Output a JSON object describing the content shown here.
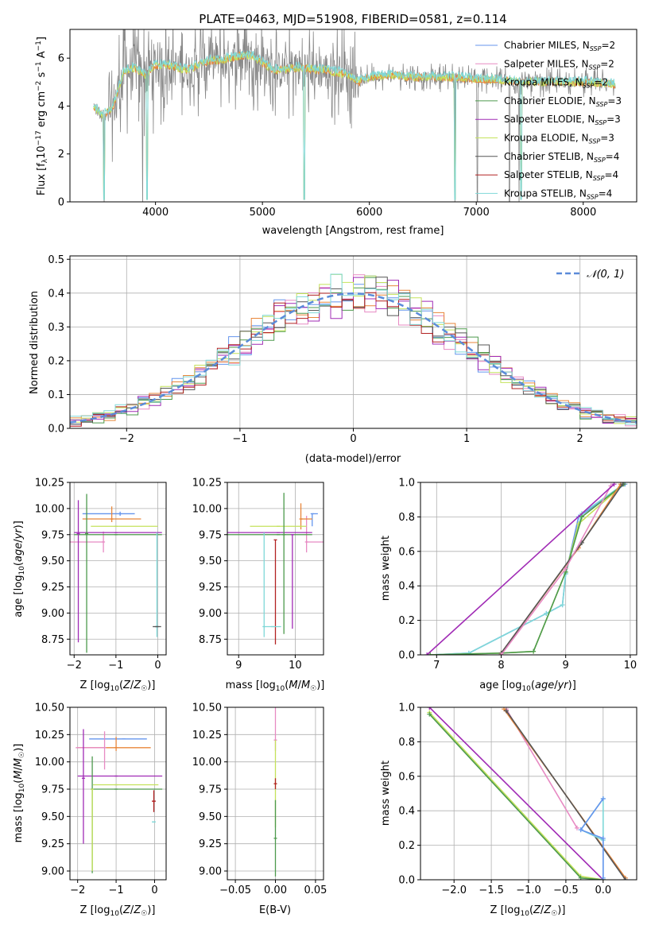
{
  "colors": {
    "c1": "#6495ed",
    "c2": "#e78ac3",
    "c3": "#e8863a",
    "c4": "#4d9a4d",
    "c5": "#a02bb5",
    "c6": "#c4e25b",
    "c7": "#555555",
    "c8": "#b22222",
    "c9": "#7fd8d8",
    "obs": "#888888",
    "grid": "#b0b0b0"
  },
  "chart_data": [
    {
      "id": "spectrum",
      "type": "line",
      "title": "PLATE=0463, MJD=51908, FIBERID=0581, z=0.114",
      "xlabel": "wavelength [Angstrom, rest frame]",
      "ylabel": "Flux [f_λ10⁻¹⁷ erg cm⁻² s⁻¹ A⁻¹]",
      "xlim": [
        3200,
        8500
      ],
      "ylim": [
        0,
        7.2
      ],
      "xticks": [
        4000,
        5000,
        6000,
        7000,
        8000
      ],
      "yticks": [
        0,
        2,
        4,
        6
      ],
      "legend_position": "right",
      "series": [
        {
          "name": "Chabrier MILES, N_SSP=2"
        },
        {
          "name": "Salpeter MILES, N_SSP=2"
        },
        {
          "name": "Kroupa MILES, N_SSP=2"
        },
        {
          "name": "Chabrier ELODIE, N_SSP=3"
        },
        {
          "name": "Salpeter ELODIE, N_SSP=3"
        },
        {
          "name": "Kroupa ELODIE, N_SSP=3"
        },
        {
          "name": "Chabrier STELIB, N_SSP=4"
        },
        {
          "name": "Salpeter STELIB, N_SSP=4"
        },
        {
          "name": "Kroupa STELIB, N_SSP=4"
        }
      ],
      "continuum": [
        [
          3420,
          4.0
        ],
        [
          3500,
          3.6
        ],
        [
          3600,
          3.9
        ],
        [
          3700,
          5.4
        ],
        [
          3800,
          5.6
        ],
        [
          3900,
          5.3
        ],
        [
          4000,
          5.7
        ],
        [
          4100,
          5.7
        ],
        [
          4200,
          5.6
        ],
        [
          4300,
          5.5
        ],
        [
          4400,
          5.7
        ],
        [
          4500,
          5.9
        ],
        [
          4600,
          5.9
        ],
        [
          4700,
          6.0
        ],
        [
          4800,
          6.1
        ],
        [
          4900,
          6.1
        ],
        [
          5000,
          5.8
        ],
        [
          5100,
          5.5
        ],
        [
          5200,
          5.5
        ],
        [
          5300,
          5.6
        ],
        [
          5400,
          5.6
        ],
        [
          5500,
          5.5
        ],
        [
          5600,
          5.5
        ],
        [
          5700,
          5.4
        ],
        [
          5800,
          5.3
        ],
        [
          5900,
          5.0
        ],
        [
          6000,
          5.2
        ],
        [
          6200,
          5.3
        ],
        [
          6400,
          5.2
        ],
        [
          6600,
          5.2
        ],
        [
          6800,
          5.2
        ],
        [
          7000,
          5.1
        ],
        [
          7200,
          5.1
        ],
        [
          7400,
          5.0
        ],
        [
          7600,
          5.0
        ],
        [
          7800,
          5.0
        ],
        [
          8000,
          5.0
        ],
        [
          8300,
          4.9
        ]
      ],
      "model_dips": [
        3520,
        3920,
        5390,
        6800,
        7420
      ],
      "obs_dips": [
        3520,
        3880,
        6800,
        7010,
        7310,
        7400
      ]
    },
    {
      "id": "residuals",
      "type": "step",
      "xlabel": "(data-model)/error",
      "ylabel": "Normed distribution",
      "xlim": [
        -2.5,
        2.5
      ],
      "ylim": [
        0,
        0.51
      ],
      "xticks": [
        -2,
        -1,
        0,
        1,
        2
      ],
      "yticks": [
        0,
        0.1,
        0.2,
        0.3,
        0.4,
        0.5
      ],
      "legend": "𝒩(0, 1)",
      "legend_position": "upper right",
      "bin_width": 0.1
    },
    {
      "id": "age_vs_Z",
      "type": "errorbar",
      "xlabel": "Z [log10(Z/Z☉)]",
      "ylabel": "age  [log10(age/yr)]",
      "xlim": [
        -2.1,
        0.2
      ],
      "ylim": [
        8.6,
        10.25
      ],
      "xticks": [
        -2,
        -1,
        0
      ],
      "yticks": [
        8.75,
        9.0,
        9.25,
        9.5,
        9.75,
        10.0,
        10.25
      ],
      "points": [
        {
          "c": "c1",
          "x": -0.9,
          "y": 9.95,
          "xe": [
            0.9,
            0.35
          ],
          "ye": [
            0.02,
            0.02
          ]
        },
        {
          "c": "c3",
          "x": -1.1,
          "y": 9.9,
          "xe": [
            0.7,
            0.7
          ],
          "ye": [
            0.03,
            0.12
          ]
        },
        {
          "c": "c2",
          "x": -1.3,
          "y": 9.68,
          "xe": [
            0.85,
            0.0
          ],
          "ye": [
            0.1,
            0.1
          ]
        },
        {
          "c": "c5",
          "x": -1.0,
          "y": 9.77,
          "xe": [
            1.0,
            1.1
          ],
          "ye": [
            0.0,
            0.0
          ]
        },
        {
          "c": "c4",
          "x": -1.0,
          "y": 9.75,
          "xe": [
            1.0,
            1.1
          ],
          "ye": [
            0.0,
            0.0
          ]
        },
        {
          "c": "c6",
          "x": -1.0,
          "y": 9.83,
          "xe": [
            0.6,
            1.0
          ],
          "ye": [
            0.0,
            0.0
          ]
        },
        {
          "c": "c5",
          "x": -1.9,
          "y": 9.76,
          "xe": [
            0.0,
            0.0
          ],
          "ye": [
            1.04,
            0.32
          ]
        },
        {
          "c": "c4",
          "x": -1.7,
          "y": 9.76,
          "xe": [
            0.0,
            0.0
          ],
          "ye": [
            1.14,
            0.38
          ]
        },
        {
          "c": "c9",
          "x": -0.02,
          "y": 8.87,
          "xe": [
            0.0,
            0.0
          ],
          "ye": [
            0.1,
            0.9
          ]
        },
        {
          "c": "c7",
          "x": -0.02,
          "y": 8.87,
          "xe": [
            0.1,
            0.1
          ],
          "ye": [
            0.0,
            0.0
          ]
        }
      ]
    },
    {
      "id": "age_vs_mass",
      "type": "errorbar",
      "xlabel": "mass [log10(M/M☉)]",
      "xlim": [
        8.8,
        10.5
      ],
      "ylim": [
        8.6,
        10.25
      ],
      "xticks": [
        9,
        10
      ],
      "yticks": [
        8.75,
        9.0,
        9.25,
        9.5,
        9.75,
        10.0,
        10.25
      ],
      "points": [
        {
          "c": "c1",
          "x": 10.3,
          "y": 9.95,
          "xe": [
            0.0,
            0.1
          ],
          "ye": [
            0.12,
            0.0
          ]
        },
        {
          "c": "c2",
          "x": 10.2,
          "y": 9.68,
          "xe": [
            0.0,
            0.3
          ],
          "ye": [
            0.1,
            0.25
          ]
        },
        {
          "c": "c3",
          "x": 10.1,
          "y": 9.9,
          "xe": [
            0.0,
            0.2
          ],
          "ye": [
            0.1,
            0.15
          ]
        },
        {
          "c": "c6",
          "x": 9.7,
          "y": 9.83,
          "xe": [
            0.5,
            0.5
          ],
          "ye": [
            0.0,
            0.0
          ]
        },
        {
          "c": "c5",
          "x": 9.7,
          "y": 9.77,
          "xe": [
            0.9,
            0.6
          ],
          "ye": [
            0.0,
            0.0
          ]
        },
        {
          "c": "c4",
          "x": 9.7,
          "y": 9.75,
          "xe": [
            0.9,
            0.6
          ],
          "ye": [
            0.0,
            0.0
          ]
        },
        {
          "c": "c8",
          "x": 9.65,
          "y": 9.7,
          "xe": [
            0.0,
            0.0
          ],
          "ye": [
            1.0,
            0.0
          ]
        },
        {
          "c": "c4",
          "x": 9.8,
          "y": 9.75,
          "xe": [
            0.0,
            0.0
          ],
          "ye": [
            0.95,
            0.4
          ]
        },
        {
          "c": "c9",
          "x": 9.45,
          "y": 8.87,
          "xe": [
            0.0,
            0.0
          ],
          "ye": [
            0.1,
            0.9
          ]
        },
        {
          "c": "c9",
          "x": 9.6,
          "y": 8.87,
          "xe": [
            0.15,
            0.15
          ],
          "ye": [
            0.0,
            0.0
          ]
        },
        {
          "c": "c5",
          "x": 9.95,
          "y": 9.75,
          "xe": [
            0.0,
            0.0
          ],
          "ye": [
            0.9,
            0.0
          ]
        }
      ]
    },
    {
      "id": "mw_vs_age",
      "type": "cumulative_line",
      "xlabel": "age  [log10(age/yr)]",
      "ylabel": "mass weight",
      "xlim": [
        6.75,
        10.1
      ],
      "ylim": [
        0,
        1
      ],
      "xticks": [
        7,
        8,
        9,
        10
      ],
      "yticks": [
        0,
        0.2,
        0.4,
        0.6,
        0.8,
        1.0
      ],
      "series": [
        {
          "c": "c1",
          "pts": [
            [
              6.9,
              0
            ],
            [
              7.5,
              0.01
            ],
            [
              8.7,
              0.24
            ],
            [
              8.95,
              0.29
            ],
            [
              9.0,
              0.47
            ],
            [
              9.2,
              0.8
            ],
            [
              9.92,
              0.99
            ]
          ]
        },
        {
          "c": "c9",
          "pts": [
            [
              6.9,
              0
            ],
            [
              7.5,
              0.01
            ],
            [
              8.7,
              0.24
            ],
            [
              8.95,
              0.29
            ],
            [
              9.0,
              0.47
            ],
            [
              9.25,
              0.82
            ],
            [
              9.9,
              0.99
            ]
          ]
        },
        {
          "c": "c6",
          "pts": [
            [
              6.9,
              0
            ],
            [
              8.0,
              0.01
            ],
            [
              8.5,
              0.02
            ],
            [
              9.0,
              0.48
            ],
            [
              9.2,
              0.76
            ],
            [
              9.9,
              0.99
            ]
          ]
        },
        {
          "c": "c4",
          "pts": [
            [
              6.9,
              0
            ],
            [
              8.0,
              0.01
            ],
            [
              8.5,
              0.02
            ],
            [
              9.0,
              0.48
            ],
            [
              9.25,
              0.8
            ],
            [
              9.9,
              0.99
            ]
          ]
        },
        {
          "c": "c3",
          "pts": [
            [
              8.0,
              0
            ],
            [
              8.0,
              0.01
            ],
            [
              9.2,
              0.62
            ],
            [
              9.85,
              0.99
            ]
          ]
        },
        {
          "c": "c7",
          "pts": [
            [
              8.0,
              0
            ],
            [
              8.0,
              0.01
            ],
            [
              9.25,
              0.65
            ],
            [
              9.88,
              0.99
            ]
          ]
        },
        {
          "c": "c2",
          "pts": [
            [
              8.0,
              0
            ],
            [
              9.0,
              0.5
            ],
            [
              9.7,
              0.98
            ]
          ]
        },
        {
          "c": "c5",
          "pts": [
            [
              6.85,
              0
            ],
            [
              9.75,
              0.99
            ]
          ]
        }
      ]
    },
    {
      "id": "mass_vs_Z",
      "type": "errorbar",
      "xlabel": "Z [log10(Z/Z☉)]",
      "ylabel": "mass [log10(M/M☉)]",
      "xlim": [
        -2.2,
        0.3
      ],
      "ylim": [
        8.92,
        10.5
      ],
      "xticks": [
        -2,
        -1,
        0
      ],
      "yticks": [
        9.0,
        9.25,
        9.5,
        9.75,
        10.0,
        10.25,
        10.5
      ],
      "points": [
        {
          "c": "c1",
          "x": -0.8,
          "y": 10.21,
          "xe": [
            0.9,
            0.6
          ],
          "ye": [
            0.0,
            0.0
          ]
        },
        {
          "c": "c3",
          "x": -1.0,
          "y": 10.13,
          "xe": [
            1.0,
            0.9
          ],
          "ye": [
            0.03,
            0.1
          ]
        },
        {
          "c": "c2",
          "x": -1.3,
          "y": 10.13,
          "xe": [
            0.75,
            0.0
          ],
          "ye": [
            0.2,
            0.15
          ]
        },
        {
          "c": "c5",
          "x": -1.0,
          "y": 9.87,
          "xe": [
            1.0,
            1.2
          ],
          "ye": [
            0.0,
            0.0
          ]
        },
        {
          "c": "c6",
          "x": -1.0,
          "y": 9.79,
          "xe": [
            0.6,
            1.1
          ],
          "ye": [
            0.0,
            0.0
          ]
        },
        {
          "c": "c4",
          "x": -1.0,
          "y": 9.75,
          "xe": [
            0.6,
            1.2
          ],
          "ye": [
            0.0,
            0.0
          ]
        },
        {
          "c": "c5",
          "x": -1.85,
          "y": 9.85,
          "xe": [
            0.0,
            0.0
          ],
          "ye": [
            0.6,
            0.45
          ]
        },
        {
          "c": "c4",
          "x": -1.62,
          "y": 9.75,
          "xe": [
            0.0,
            0.0
          ],
          "ye": [
            0.77,
            0.3
          ]
        },
        {
          "c": "c6",
          "x": -1.62,
          "y": 9.75,
          "xe": [
            0.0,
            0.0
          ],
          "ye": [
            0.75,
            0.0
          ]
        },
        {
          "c": "c9",
          "x": -0.02,
          "y": 9.45,
          "xe": [
            0.05,
            0.05
          ],
          "ye": [
            0.0,
            0.0
          ]
        },
        {
          "c": "c8",
          "x": -0.02,
          "y": 9.64,
          "xe": [
            0.05,
            0.05
          ],
          "ye": [
            0.1,
            0.1
          ]
        }
      ]
    },
    {
      "id": "mass_vs_ebv",
      "type": "errorbar",
      "xlabel": "E(B-V)",
      "xlim": [
        -0.06,
        0.06
      ],
      "ylim": [
        8.92,
        10.5
      ],
      "xticks": [
        -0.05,
        0.0,
        0.05
      ],
      "yticks": [
        9.0,
        9.25,
        9.5,
        9.75,
        10.0,
        10.25,
        10.5
      ],
      "points": [
        {
          "c": "c2",
          "x": 0.0,
          "y": 10.2,
          "xe": [
            0,
            0
          ],
          "ye": [
            0.1,
            0.3
          ]
        },
        {
          "c": "c6",
          "x": 0.0,
          "y": 9.8,
          "xe": [
            0,
            0
          ],
          "ye": [
            0.4,
            0.4
          ]
        },
        {
          "c": "c4",
          "x": 0.0,
          "y": 9.3,
          "xe": [
            0,
            0
          ],
          "ye": [
            0.35,
            0.35
          ]
        },
        {
          "c": "c8",
          "x": 0.0,
          "y": 9.8,
          "xe": [
            0,
            0
          ],
          "ye": [
            0.05,
            0.05
          ]
        }
      ]
    },
    {
      "id": "mw_vs_Z",
      "type": "cumulative_line",
      "xlabel": "Z [log10(Z/Z☉)]",
      "ylabel": "mass weight",
      "xlim": [
        -2.45,
        0.45
      ],
      "ylim": [
        0,
        1
      ],
      "xticks": [
        -2.0,
        -1.5,
        -1.0,
        -0.5,
        0.0
      ],
      "yticks": [
        0,
        0.2,
        0.4,
        0.6,
        0.8,
        1.0
      ],
      "series": [
        {
          "c": "c6",
          "pts": [
            [
              -2.33,
              0.97
            ],
            [
              -0.3,
              0.02
            ],
            [
              0.0,
              0.0
            ]
          ]
        },
        {
          "c": "c4",
          "pts": [
            [
              -2.33,
              0.96
            ],
            [
              -0.3,
              0.01
            ],
            [
              0.0,
              0.0
            ]
          ]
        },
        {
          "c": "c5",
          "pts": [
            [
              -2.33,
              1.0
            ],
            [
              0.0,
              0.0
            ]
          ]
        },
        {
          "c": "c2",
          "pts": [
            [
              -1.3,
              0.99
            ],
            [
              -0.35,
              0.3
            ]
          ]
        },
        {
          "c": "c3",
          "pts": [
            [
              -1.33,
              0.99
            ],
            [
              0.3,
              0.01
            ]
          ]
        },
        {
          "c": "c7",
          "pts": [
            [
              -1.3,
              0.98
            ],
            [
              0.3,
              0.0
            ]
          ]
        },
        {
          "c": "c9",
          "pts": [
            [
              0.0,
              0.0
            ],
            [
              0.0,
              0.23
            ],
            [
              -0.3,
              0.29
            ],
            [
              0.0,
              0.47
            ],
            [
              0.0,
              0.0
            ]
          ]
        },
        {
          "c": "c1",
          "pts": [
            [
              0.0,
              0.01
            ],
            [
              0.0,
              0.24
            ],
            [
              -0.3,
              0.29
            ],
            [
              0.0,
              0.47
            ]
          ]
        }
      ]
    }
  ]
}
